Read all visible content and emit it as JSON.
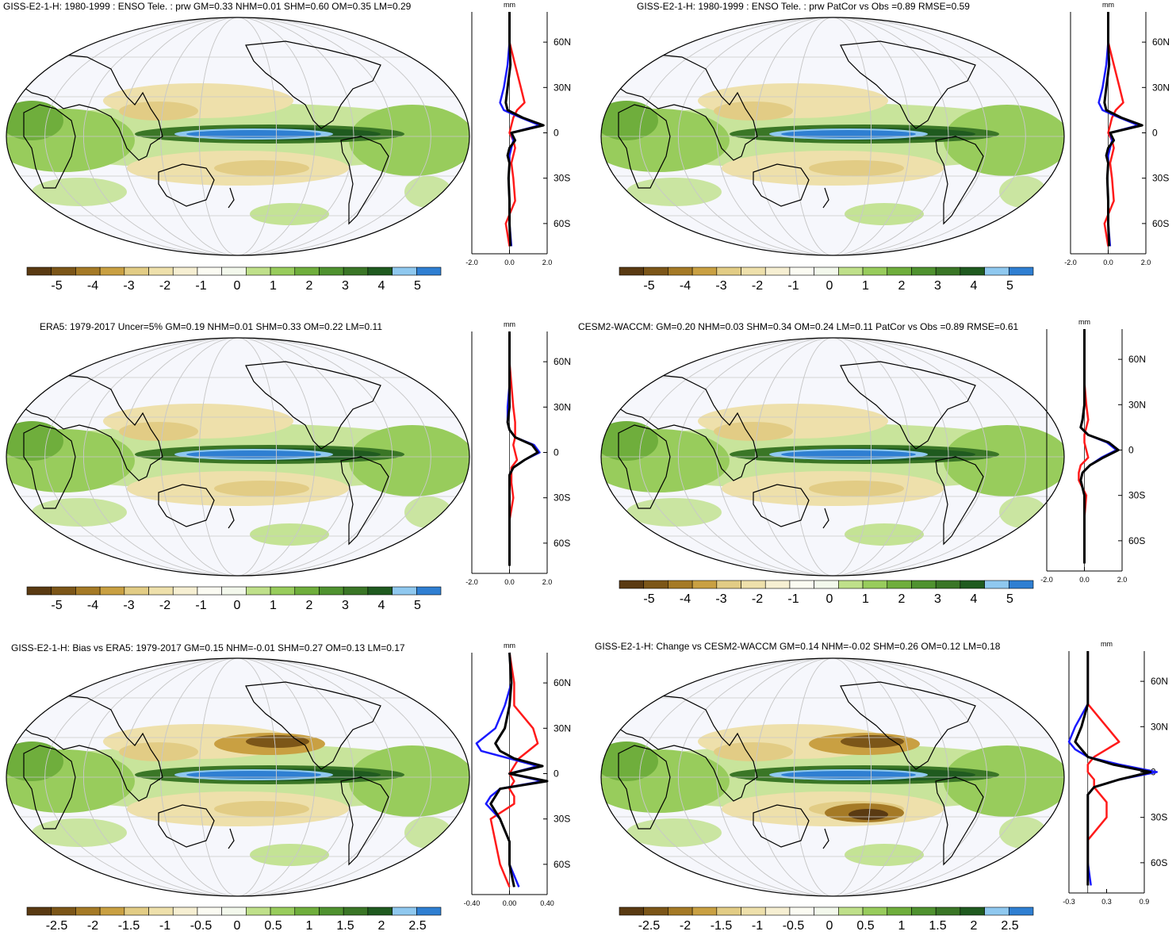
{
  "panels": [
    {
      "id": "p1",
      "title": "GISS-E2-1-H: 1980-1999 : ENSO Tele. : prw GM=0.33 NHM=0.01 SHM=0.60 OM=0.35 LM=0.29",
      "colorbar_labels": [
        "-5",
        "-4",
        "-3",
        "-2",
        "-1",
        "0",
        "1",
        "2",
        "3",
        "4",
        "5"
      ],
      "zonal": {
        "unit": "mm",
        "x_ticks": [
          "-2.0",
          "0.0",
          "2.0"
        ],
        "lat_labels": [
          "60N",
          "30N",
          "0",
          "30S",
          "60S"
        ]
      }
    },
    {
      "id": "p2",
      "title": "GISS-E2-1-H: 1980-1999 : ENSO Tele. : prw PatCor vs Obs =0.89 RMSE=0.59",
      "colorbar_labels": [
        "-5",
        "-4",
        "-3",
        "-2",
        "-1",
        "0",
        "1",
        "2",
        "3",
        "4",
        "5"
      ],
      "zonal": {
        "unit": "mm",
        "x_ticks": [
          "-2.0",
          "0.0",
          "2.0"
        ],
        "lat_labels": [
          "60N",
          "30N",
          "0",
          "30S",
          "60S"
        ]
      }
    },
    {
      "id": "p3",
      "title": "ERA5: 1979-2017 Uncer=5% GM=0.19 NHM=0.01 SHM=0.33 OM=0.22 LM=0.11",
      "colorbar_labels": [
        "-5",
        "-4",
        "-3",
        "-2",
        "-1",
        "0",
        "1",
        "2",
        "3",
        "4",
        "5"
      ],
      "zonal": {
        "unit": "mm",
        "x_ticks": [
          "-2.0",
          "0.0",
          "2.0"
        ],
        "lat_labels": [
          "60N",
          "30N",
          "0",
          "30S",
          "60S"
        ]
      }
    },
    {
      "id": "p4",
      "title": "CESM2-WACCM: GM=0.20 NHM=0.03 SHM=0.34 OM=0.24 LM=0.11 PatCor vs Obs =0.89 RMSE=0.61",
      "colorbar_labels": [
        "-5",
        "-4",
        "-3",
        "-2",
        "-1",
        "0",
        "1",
        "2",
        "3",
        "4",
        "5"
      ],
      "zonal": {
        "unit": "mm",
        "x_ticks": [
          "-2.0",
          "0.0",
          "2.0"
        ],
        "lat_labels": [
          "60N",
          "30N",
          "0",
          "30S",
          "60S"
        ]
      }
    },
    {
      "id": "p5",
      "title": "GISS-E2-1-H: Bias vs ERA5: 1979-2017 GM=0.15 NHM=-0.01 SHM=0.27 OM=0.13 LM=0.17",
      "colorbar_labels": [
        "-2.5",
        "-2",
        "-1.5",
        "-1",
        "-0.5",
        "0",
        "0.5",
        "1",
        "1.5",
        "2",
        "2.5"
      ],
      "zonal": {
        "unit": "mm",
        "x_ticks": [
          "-0.40",
          "0.00",
          "0.40"
        ],
        "lat_labels": [
          "60N",
          "30N",
          "0",
          "30S",
          "60S"
        ]
      }
    },
    {
      "id": "p6",
      "title": "GISS-E2-1-H: Change vs CESM2-WACCM GM=0.14 NHM=-0.02 SHM=0.26 OM=0.12 LM=0.18",
      "colorbar_labels": [
        "-2.5",
        "-2",
        "-1.5",
        "-1",
        "-0.5",
        "0",
        "0.5",
        "1",
        "1.5",
        "2",
        "2.5"
      ],
      "zonal": {
        "unit": "mm",
        "x_ticks": [
          "-0.3",
          "0.3",
          "0.9"
        ],
        "lat_labels": [
          "60N",
          "30N",
          "0",
          "30S",
          "60S"
        ]
      }
    }
  ],
  "colors": {
    "palette": [
      "#5a3a12",
      "#7c5618",
      "#a57a26",
      "#c9a042",
      "#e2cc85",
      "#eee0ab",
      "#f6efd2",
      "#fbfbf2",
      "#f3f8ec",
      "#bfe08a",
      "#98cc5c",
      "#6fae3c",
      "#4f922f",
      "#3a7626",
      "#1f5a1f",
      "#8fc8ef",
      "#2f7fd2"
    ],
    "series_model": "#000000",
    "series_obs": "#1a1aff",
    "series_diff": "#ff1a1a",
    "ocean_background": "#f6f7fc",
    "coastline": "#000000"
  },
  "chart_data": [
    {
      "type": "heatmap",
      "title": "GISS-E2-1-H: 1980-1999 : ENSO Tele. : prw GM=0.33 NHM=0.01 SHM=0.60 OM=0.35 LM=0.29",
      "colorbar": [
        -5,
        -4,
        -3,
        -2,
        -1,
        0,
        1,
        2,
        3,
        4,
        5
      ],
      "zonal_mean": {
        "unit": "mm",
        "xlim": [
          -2.0,
          2.0
        ],
        "lat": [
          80,
          60,
          45,
          30,
          20,
          15,
          10,
          5,
          0,
          -5,
          -10,
          -15,
          -20,
          -30,
          -45,
          -60,
          -75
        ],
        "series": [
          {
            "values": [
              0.0,
              0.0,
              0.05,
              -0.1,
              -0.2,
              -0.1,
              0.7,
              1.8,
              0.1,
              0.3,
              0.0,
              -0.1,
              0.0,
              -0.05,
              0.0,
              0.0,
              0.05
            ]
          },
          {
            "values": [
              0.0,
              0.0,
              -0.1,
              -0.3,
              -0.5,
              -0.3,
              0.6,
              1.6,
              0.1,
              0.2,
              0.1,
              0.0,
              0.0,
              -0.05,
              0.0,
              0.0,
              0.1
            ]
          },
          {
            "values": [
              0.0,
              0.0,
              0.3,
              0.6,
              0.8,
              0.4,
              0.2,
              0.1,
              0.0,
              0.2,
              0.3,
              0.2,
              0.1,
              0.2,
              0.3,
              -0.2,
              0.0
            ]
          }
        ]
      }
    },
    {
      "type": "heatmap",
      "title": "GISS-E2-1-H: 1980-1999 : ENSO Tele. : prw PatCor vs Obs =0.89 RMSE=0.59",
      "colorbar": [
        -5,
        -4,
        -3,
        -2,
        -1,
        0,
        1,
        2,
        3,
        4,
        5
      ],
      "zonal_mean": {
        "unit": "mm",
        "xlim": [
          -2.0,
          2.0
        ],
        "lat": [
          80,
          60,
          45,
          30,
          20,
          15,
          10,
          5,
          0,
          -5,
          -10,
          -15,
          -20,
          -30,
          -45,
          -60,
          -75
        ],
        "series": [
          {
            "values": [
              0.0,
              0.0,
              0.05,
              -0.1,
              -0.2,
              -0.1,
              0.7,
              1.8,
              0.1,
              0.3,
              0.0,
              -0.1,
              0.0,
              -0.05,
              0.0,
              0.0,
              0.05
            ]
          },
          {
            "values": [
              0.0,
              0.0,
              -0.1,
              -0.3,
              -0.5,
              -0.3,
              0.6,
              1.6,
              0.1,
              0.2,
              0.1,
              0.0,
              0.0,
              -0.05,
              0.0,
              0.0,
              0.1
            ]
          },
          {
            "values": [
              0.0,
              0.0,
              0.3,
              0.6,
              0.8,
              0.4,
              0.2,
              0.1,
              0.0,
              0.2,
              0.3,
              0.2,
              0.1,
              0.2,
              0.3,
              -0.2,
              0.0
            ]
          }
        ]
      }
    },
    {
      "type": "heatmap",
      "title": "ERA5: 1979-2017 Uncer=5% GM=0.19 NHM=0.01 SHM=0.33 OM=0.22 LM=0.11",
      "colorbar": [
        -5,
        -4,
        -3,
        -2,
        -1,
        0,
        1,
        2,
        3,
        4,
        5
      ],
      "zonal_mean": {
        "unit": "mm",
        "xlim": [
          -2.0,
          2.0
        ],
        "lat": [
          80,
          60,
          45,
          30,
          20,
          15,
          10,
          5,
          0,
          -5,
          -10,
          -15,
          -20,
          -30,
          -45,
          -60,
          -75
        ],
        "series": [
          {
            "values": [
              0.0,
              0.0,
              0.0,
              0.0,
              -0.1,
              0.0,
              0.3,
              1.2,
              1.5,
              0.8,
              0.2,
              0.0,
              0.0,
              0.0,
              0.0,
              0.0,
              0.0
            ]
          },
          {
            "values": [
              0.0,
              0.0,
              0.0,
              -0.1,
              -0.1,
              0.0,
              0.3,
              1.3,
              1.6,
              0.8,
              0.2,
              0.0,
              0.0,
              0.0,
              0.0,
              0.0,
              0.0
            ]
          },
          {
            "values": [
              0.0,
              0.0,
              0.1,
              0.2,
              0.3,
              0.3,
              0.3,
              0.2,
              0.3,
              0.4,
              0.1,
              0.1,
              0.1,
              0.2,
              0.0,
              0.0,
              0.0
            ]
          }
        ]
      }
    },
    {
      "type": "heatmap",
      "title": "CESM2-WACCM: GM=0.20 NHM=0.03 SHM=0.34 OM=0.24 LM=0.11 PatCor vs Obs =0.89 RMSE=0.61",
      "colorbar": [
        -5,
        -4,
        -3,
        -2,
        -1,
        0,
        1,
        2,
        3,
        4,
        5
      ],
      "zonal_mean": {
        "unit": "mm",
        "xlim": [
          -2.0,
          2.0
        ],
        "lat": [
          80,
          60,
          45,
          30,
          20,
          15,
          10,
          5,
          0,
          -5,
          -10,
          -15,
          -20,
          -30,
          -45,
          -60,
          -75
        ],
        "series": [
          {
            "values": [
              0.0,
              0.0,
              0.0,
              0.0,
              -0.1,
              -0.2,
              0.2,
              1.3,
              1.8,
              1.0,
              0.3,
              -0.1,
              -0.2,
              0.0,
              0.0,
              0.0,
              0.0
            ]
          },
          {
            "values": [
              0.0,
              0.0,
              0.0,
              0.0,
              -0.1,
              -0.2,
              0.2,
              1.2,
              1.7,
              0.9,
              0.3,
              -0.1,
              -0.2,
              0.0,
              0.0,
              0.0,
              0.0
            ]
          },
          {
            "values": [
              0.0,
              0.0,
              0.0,
              0.1,
              0.2,
              0.1,
              0.0,
              0.0,
              0.1,
              0.2,
              -0.2,
              -0.3,
              -0.3,
              0.1,
              0.0,
              0.0,
              0.0
            ]
          }
        ]
      }
    },
    {
      "type": "heatmap",
      "title": "GISS-E2-1-H: Bias vs ERA5: 1979-2017 GM=0.15 NHM=-0.01 SHM=0.27 OM=0.13 LM=0.17",
      "colorbar": [
        -2.5,
        -2,
        -1.5,
        -1,
        -0.5,
        0,
        0.5,
        1,
        1.5,
        2,
        2.5
      ],
      "zonal_mean": {
        "unit": "mm",
        "xlim": [
          -0.4,
          0.4
        ],
        "lat": [
          80,
          60,
          45,
          30,
          20,
          15,
          10,
          5,
          0,
          -5,
          -10,
          -15,
          -20,
          -30,
          -45,
          -60,
          -75
        ],
        "series": [
          {
            "values": [
              0.0,
              0.02,
              0.0,
              -0.05,
              -0.15,
              -0.1,
              0.05,
              0.35,
              0.0,
              0.4,
              -0.1,
              -0.15,
              -0.2,
              -0.1,
              0.0,
              0.0,
              0.05
            ]
          },
          {
            "values": [
              0.0,
              0.02,
              -0.05,
              -0.15,
              -0.35,
              -0.3,
              0.0,
              0.3,
              0.0,
              0.35,
              -0.1,
              -0.2,
              -0.25,
              -0.1,
              0.0,
              0.0,
              0.1
            ]
          },
          {
            "values": [
              0.0,
              0.05,
              0.05,
              0.25,
              0.3,
              0.2,
              0.1,
              0.05,
              0.0,
              0.05,
              0.0,
              0.05,
              0.05,
              -0.2,
              -0.15,
              -0.1,
              0.0
            ]
          }
        ]
      }
    },
    {
      "type": "heatmap",
      "title": "GISS-E2-1-H: Change vs CESM2-WACCM GM=0.14 NHM=-0.02 SHM=0.26 OM=0.12 LM=0.18",
      "colorbar": [
        -2.5,
        -2,
        -1.5,
        -1,
        -0.5,
        0,
        0.5,
        1,
        1.5,
        2,
        2.5
      ],
      "zonal_mean": {
        "unit": "mm",
        "xlim": [
          -0.3,
          0.9
        ],
        "lat": [
          80,
          60,
          45,
          30,
          20,
          15,
          10,
          5,
          0,
          -5,
          -10,
          -15,
          -20,
          -30,
          -45,
          -60,
          -75
        ],
        "series": [
          {
            "values": [
              0.0,
              0.0,
              0.0,
              -0.1,
              -0.2,
              -0.1,
              0.0,
              0.4,
              1.0,
              0.5,
              0.1,
              0.0,
              0.0,
              0.0,
              0.0,
              0.0,
              0.0
            ]
          },
          {
            "values": [
              0.0,
              0.0,
              0.0,
              -0.2,
              -0.3,
              -0.2,
              0.0,
              0.5,
              1.1,
              0.5,
              0.1,
              0.0,
              0.0,
              0.0,
              0.0,
              0.0,
              0.05
            ]
          },
          {
            "values": [
              0.0,
              0.0,
              0.0,
              0.3,
              0.5,
              0.3,
              0.1,
              0.0,
              0.0,
              0.1,
              0.1,
              0.2,
              0.3,
              0.3,
              0.0,
              0.0,
              0.0
            ]
          }
        ]
      }
    }
  ]
}
